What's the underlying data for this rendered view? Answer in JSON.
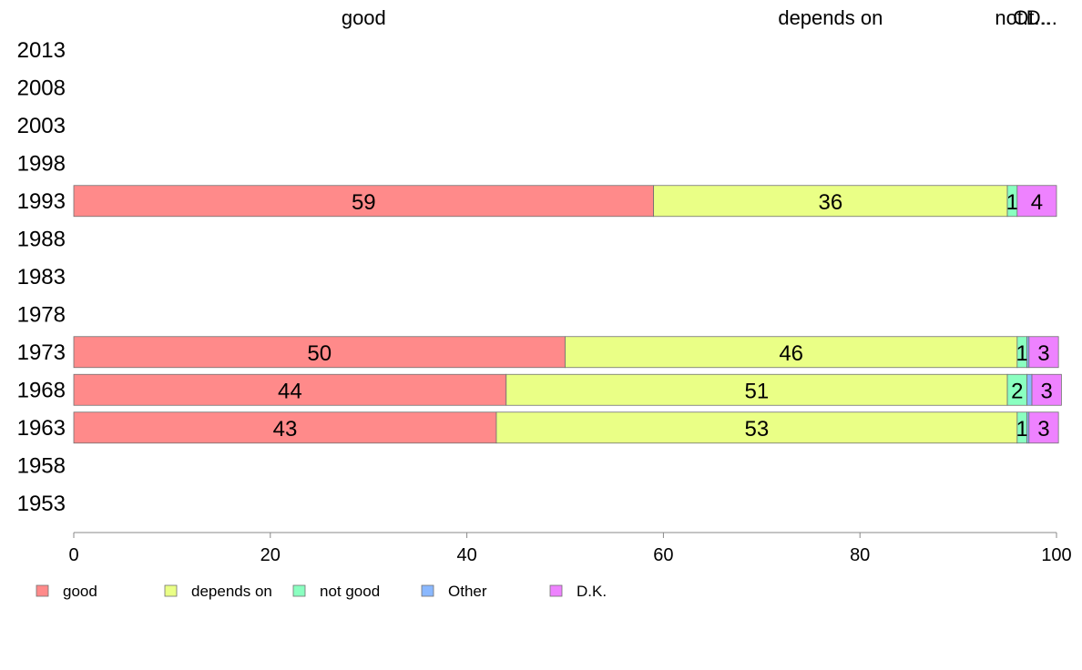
{
  "chart_data": {
    "type": "bar",
    "orientation": "horizontal",
    "stacked": true,
    "categories": [
      "2013",
      "2008",
      "2003",
      "1998",
      "1993",
      "1988",
      "1983",
      "1978",
      "1973",
      "1968",
      "1963",
      "1958",
      "1953"
    ],
    "series": [
      {
        "name": "good",
        "color": "#ff8a8a",
        "values": [
          null,
          null,
          null,
          null,
          59,
          null,
          null,
          null,
          50,
          44,
          43,
          null,
          null
        ],
        "labels": [
          "",
          "",
          "",
          "",
          "59",
          "",
          "",
          "",
          "50",
          "44",
          "43",
          "",
          ""
        ]
      },
      {
        "name": "depends on",
        "color": "#eaff86",
        "values": [
          null,
          null,
          null,
          null,
          36,
          null,
          null,
          null,
          46,
          51,
          53,
          null,
          null
        ],
        "labels": [
          "",
          "",
          "",
          "",
          "36",
          "",
          "",
          "",
          "46",
          "51",
          "53",
          "",
          ""
        ]
      },
      {
        "name": "not good",
        "color": "#8affc0",
        "values": [
          null,
          null,
          null,
          null,
          1,
          null,
          null,
          null,
          1,
          2,
          1,
          null,
          null
        ],
        "labels": [
          "",
          "",
          "",
          "",
          "1",
          "",
          "",
          "",
          "1",
          "2",
          "1",
          "",
          ""
        ]
      },
      {
        "name": "Other",
        "color": "#8ab8ff",
        "values": [
          null,
          null,
          null,
          null,
          0,
          null,
          null,
          null,
          0.2,
          0.5,
          0.2,
          null,
          null
        ],
        "labels": [
          "",
          "",
          "",
          "",
          "",
          "",
          "",
          "",
          "",
          "",
          "",
          "",
          ""
        ]
      },
      {
        "name": "D.K.",
        "color": "#ee82ff",
        "values": [
          null,
          null,
          null,
          null,
          4,
          null,
          null,
          null,
          3,
          3,
          3,
          null,
          null
        ],
        "labels": [
          "",
          "",
          "",
          "",
          "4",
          "",
          "",
          "",
          "3",
          "3",
          "3",
          "",
          ""
        ]
      }
    ],
    "top_labels": [
      "good",
      "depends on",
      "not...",
      "Ot...",
      "D..."
    ],
    "top_label_positions": [
      29.5,
      77,
      96,
      97.5,
      98.5
    ],
    "xlim": [
      0,
      100
    ],
    "xticks": [
      0,
      20,
      40,
      60,
      80,
      100
    ],
    "xtick_labels": [
      "0",
      "20",
      "40",
      "60",
      "80",
      "100"
    ],
    "grid": false,
    "legend": {
      "position": "bottom-left",
      "entries": [
        "good",
        "depends on",
        "not good",
        "Other",
        "D.K."
      ]
    }
  }
}
